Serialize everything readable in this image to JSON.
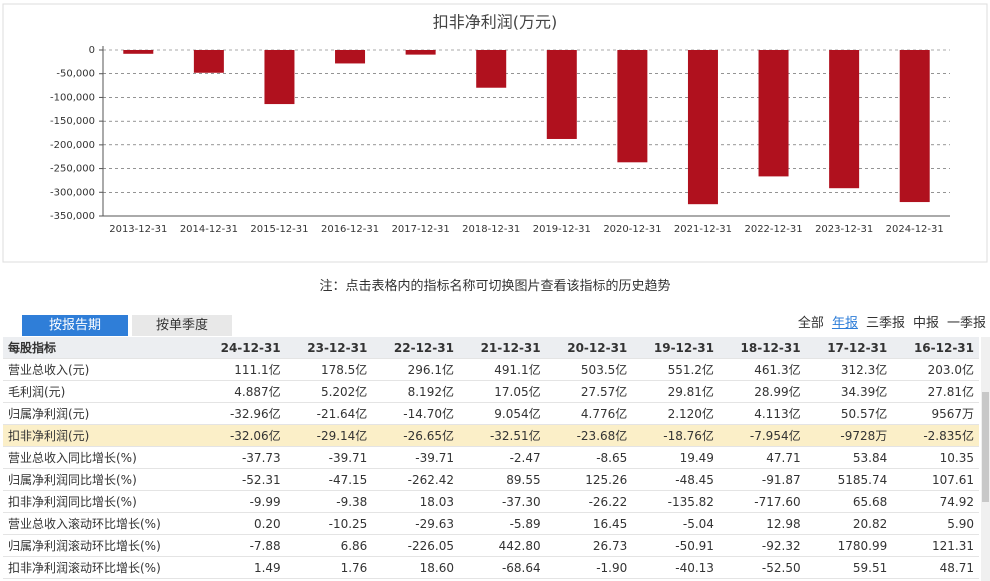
{
  "chart_data": {
    "type": "bar",
    "title": "扣非净利润(万元)",
    "categories": [
      "2013-12-31",
      "2014-12-31",
      "2015-12-31",
      "2016-12-31",
      "2017-12-31",
      "2018-12-31",
      "2019-12-31",
      "2020-12-31",
      "2021-12-31",
      "2022-12-31",
      "2023-12-31",
      "2024-12-31"
    ],
    "values": [
      -8000,
      -48000,
      -114000,
      -28350,
      -9728,
      -79540,
      -187600,
      -236800,
      -325100,
      -266500,
      -291400,
      -320600
    ],
    "color": "#b0111e",
    "ylim": [
      -350000,
      0
    ],
    "yticks": [
      0,
      {
        "value": -50000,
        "label": "-50,000"
      },
      {
        "value": -100000,
        "label": "-100,000"
      },
      {
        "value": -150000,
        "label": "-150,000"
      },
      {
        "value": -200000,
        "label": "-200,000"
      },
      {
        "value": -250000,
        "label": "-250,000"
      },
      {
        "value": -300000,
        "label": "-300,000"
      },
      {
        "value": -350000,
        "label": "-350,000"
      }
    ],
    "grid": true
  },
  "note": "注：点击表格内的指标名称可切换图片查看该指标的历史趋势",
  "tabs": [
    "按报告期",
    "按单季度"
  ],
  "periods": [
    "全部",
    "年报",
    "三季报",
    "中报",
    "一季报"
  ],
  "table": {
    "rows": [
      [
        "每股指标",
        "24-12-31",
        "23-12-31",
        "22-12-31",
        "21-12-31",
        "20-12-31",
        "19-12-31",
        "18-12-31",
        "17-12-31",
        "16-12-31"
      ],
      [
        "营业总收入(元)",
        "111.1亿",
        "178.5亿",
        "296.1亿",
        "491.1亿",
        "503.5亿",
        "551.2亿",
        "461.3亿",
        "312.3亿",
        "203.0亿"
      ],
      [
        "毛利润(元)",
        "4.887亿",
        "5.202亿",
        "8.192亿",
        "17.05亿",
        "27.57亿",
        "29.81亿",
        "28.99亿",
        "34.39亿",
        "27.81亿"
      ],
      [
        "归属净利润(元)",
        "-32.96亿",
        "-21.64亿",
        "-14.70亿",
        "9.054亿",
        "4.776亿",
        "2.120亿",
        "4.113亿",
        "50.57亿",
        "9567万"
      ],
      [
        "扣非净利润(元)",
        "-32.06亿",
        "-29.14亿",
        "-26.65亿",
        "-32.51亿",
        "-23.68亿",
        "-18.76亿",
        "-7.954亿",
        "-9728万",
        "-2.835亿"
      ],
      [
        "营业总收入同比增长(%)",
        "-37.73",
        "-39.71",
        "-39.71",
        "-2.47",
        "-8.65",
        "19.49",
        "47.71",
        "53.84",
        "10.35"
      ],
      [
        "归属净利润同比增长(%)",
        "-52.31",
        "-47.15",
        "-262.42",
        "89.55",
        "125.26",
        "-48.45",
        "-91.87",
        "5185.74",
        "107.61"
      ],
      [
        "扣非净利润同比增长(%)",
        "-9.99",
        "-9.38",
        "18.03",
        "-37.30",
        "-26.22",
        "-135.82",
        "-717.60",
        "65.68",
        "74.92"
      ],
      [
        "营业总收入滚动环比增长(%)",
        "0.20",
        "-10.25",
        "-29.63",
        "-5.89",
        "16.45",
        "-5.04",
        "12.98",
        "20.82",
        "5.90"
      ],
      [
        "归属净利润滚动环比增长(%)",
        "-7.88",
        "6.86",
        "-226.05",
        "442.80",
        "26.73",
        "-50.91",
        "-92.32",
        "1780.99",
        "121.31"
      ],
      [
        "扣非净利润滚动环比增长(%)",
        "1.49",
        "1.76",
        "18.60",
        "-68.64",
        "-1.90",
        "-40.13",
        "-52.50",
        "59.51",
        "48.71"
      ]
    ]
  }
}
